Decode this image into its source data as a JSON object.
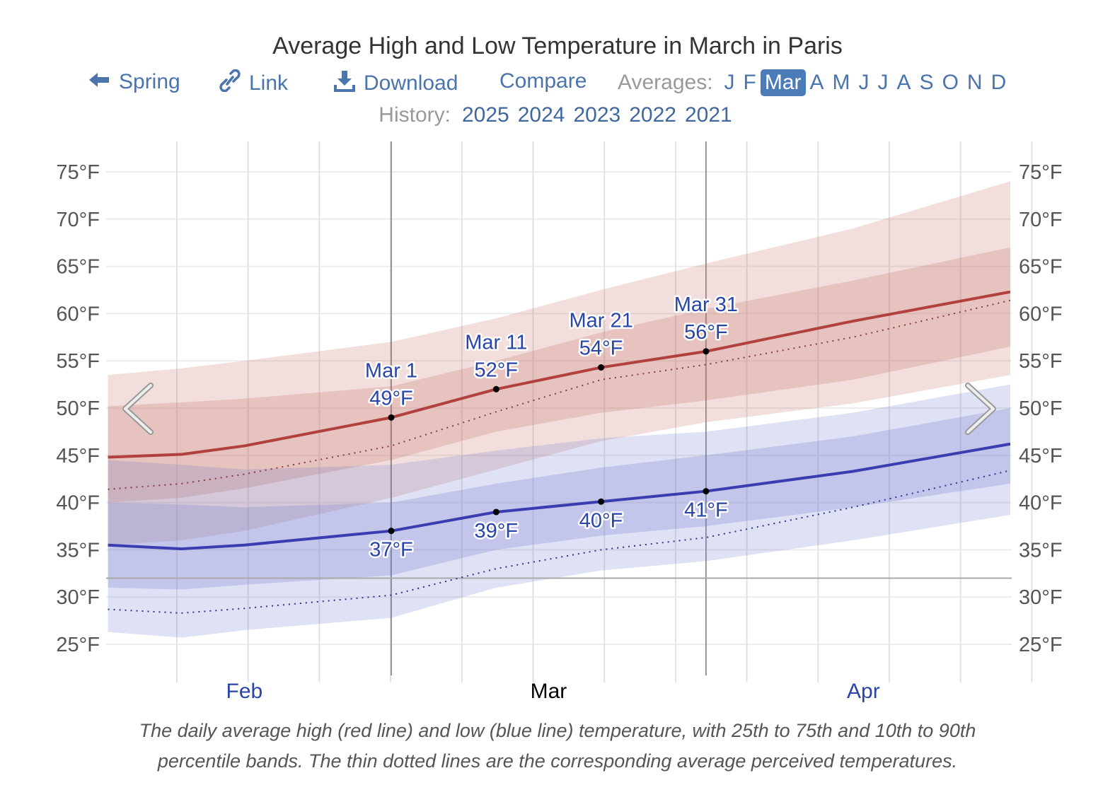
{
  "header": {
    "title": "Average High and Low Temperature in March in Paris",
    "nav": {
      "back_label": "Spring",
      "link_label": "Link",
      "download_label": "Download",
      "compare_label": "Compare"
    },
    "averages_label": "Averages:",
    "months": [
      "J",
      "F",
      "Mar",
      "A",
      "M",
      "J",
      "J",
      "A",
      "S",
      "O",
      "N",
      "D"
    ],
    "selected_month_index": 2,
    "history_label": "History:",
    "years": [
      "2025",
      "2024",
      "2023",
      "2022",
      "2021"
    ]
  },
  "caption": {
    "line1": "The daily average high (red line) and low (blue line) temperature, with 25th to 75th and 10th to 90th",
    "line2": "percentile bands. The thin dotted lines are the corresponding average perceived temperatures."
  },
  "colors": {
    "high": "#b0413e",
    "low": "#3a3db0",
    "link": "#4a74ab",
    "selected_month_bg": "#4b7cb8"
  },
  "chart_data": {
    "type": "area",
    "title": "Average High and Low Temperature in March in Paris",
    "y_unit": "°F",
    "ylim": [
      22,
      78
    ],
    "y_ticks": [
      "25°F",
      "30°F",
      "35°F",
      "40°F",
      "45°F",
      "50°F",
      "55°F",
      "60°F",
      "65°F",
      "70°F",
      "75°F"
    ],
    "y_tick_values": [
      25,
      30,
      35,
      40,
      45,
      50,
      55,
      60,
      65,
      70,
      75
    ],
    "freezing_line": 32,
    "month_labels": [
      {
        "label": "Feb",
        "date": "Feb 15",
        "current": false
      },
      {
        "label": "Mar",
        "date": "Mar 16",
        "current": true
      },
      {
        "label": "Apr",
        "date": "Apr 15",
        "current": false
      }
    ],
    "month_bounds": [
      "Mar 1",
      "Mar 31"
    ],
    "grid": true,
    "x": [
      "Feb 2",
      "Feb 9",
      "Feb 15",
      "Mar 1",
      "Mar 11",
      "Mar 21",
      "Mar 31",
      "Apr 14",
      "Apr 29"
    ],
    "series": {
      "high": [
        44.8,
        45.1,
        46.0,
        49,
        52,
        54.3,
        56,
        59.2,
        62.3
      ],
      "high_perceived": [
        41.4,
        42.0,
        43.0,
        46.0,
        49.6,
        53.0,
        54.6,
        57.5,
        61.4
      ],
      "high_p90": [
        53.5,
        54.2,
        55,
        57,
        59.5,
        62.5,
        65.3,
        69,
        74
      ],
      "high_p75": [
        50.2,
        50.6,
        51,
        52.3,
        55,
        58,
        60.5,
        63.5,
        67
      ],
      "high_p25": [
        40,
        40.5,
        41.5,
        44.5,
        47.5,
        49.5,
        50.8,
        53,
        56.5
      ],
      "high_p10": [
        35.5,
        36,
        37,
        40.5,
        43.5,
        46.5,
        48.5,
        50.5,
        53.5
      ],
      "low": [
        35.5,
        35.1,
        35.5,
        37,
        39,
        40.1,
        41.2,
        43.3,
        46.2
      ],
      "low_perceived": [
        28.7,
        28.3,
        28.8,
        30.2,
        33.0,
        35.0,
        36.3,
        39.5,
        43.4
      ],
      "low_p90": [
        44.5,
        44,
        43.5,
        44,
        45.5,
        46.8,
        47.5,
        49.5,
        52.5
      ],
      "low_p75": [
        40,
        39.8,
        39.5,
        40,
        42,
        43.7,
        45,
        47,
        50
      ],
      "low_p25": [
        31,
        30.8,
        31.3,
        32.3,
        35,
        36.5,
        37.5,
        39.5,
        42
      ],
      "low_p10": [
        26.3,
        25.7,
        26.5,
        27.8,
        31,
        32.8,
        33.8,
        36,
        38.7
      ]
    },
    "annotations": [
      {
        "date": "Mar 1",
        "high": 49,
        "low": 37,
        "date_label": "Mar 1",
        "high_label": "49°F",
        "low_label": "37°F"
      },
      {
        "date": "Mar 11",
        "high": 52,
        "low": 39,
        "date_label": "Mar 11",
        "high_label": "52°F",
        "low_label": "39°F"
      },
      {
        "date": "Mar 21",
        "high": 54.3,
        "low": 40.1,
        "date_label": "Mar 21",
        "high_label": "54°F",
        "low_label": "40°F"
      },
      {
        "date": "Mar 31",
        "high": 56,
        "low": 41.2,
        "date_label": "Mar 31",
        "high_label": "56°F",
        "low_label": "41°F"
      }
    ]
  }
}
